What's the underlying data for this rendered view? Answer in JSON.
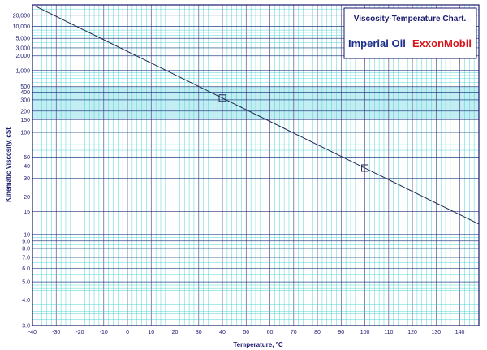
{
  "chart_data": {
    "type": "line",
    "title": "Viscosity-Temperature Chart.",
    "brands": [
      "Imperial Oil",
      "ExxonMobil"
    ],
    "xlabel": "Temperature, °C",
    "ylabel": "Kinematic Viscosity, cSt",
    "xlim": [
      -40,
      148
    ],
    "ylim": [
      3.0,
      40000
    ],
    "x_scale": "linear",
    "y_scale": "ASTM D341 (log-log)",
    "grid": true,
    "x_ticks": [
      -40,
      -30,
      -20,
      -10,
      0,
      10,
      20,
      30,
      40,
      50,
      60,
      70,
      80,
      90,
      100,
      110,
      120,
      130,
      140
    ],
    "x_tick_labels": [
      "-40",
      "-30",
      "-20",
      "-10",
      "0",
      "10",
      "20",
      "30",
      "40",
      "50",
      "60",
      "70",
      "80",
      "90",
      "100",
      "110",
      "120",
      "130",
      "140"
    ],
    "y_ticks": [
      3.0,
      4.0,
      5.0,
      6.0,
      7.0,
      8.0,
      9.0,
      10,
      15,
      20,
      30,
      40,
      50,
      100,
      150,
      200,
      300,
      400,
      500,
      1000,
      2000,
      3000,
      5000,
      10000,
      20000
    ],
    "y_tick_labels": [
      "3.0",
      "4.0",
      "5.0",
      "6.0",
      "7.0",
      "8.0",
      "9.0",
      "10",
      "15",
      "20",
      "30",
      "40",
      "50",
      "100",
      "150",
      "200",
      "300",
      "400",
      "500",
      "1,000",
      "2,000",
      "3,000",
      "5,000",
      "10,000",
      "20,000"
    ],
    "series": [
      {
        "points": [
          {
            "x": 40,
            "y": 320
          },
          {
            "x": 100,
            "y": 38
          }
        ],
        "markers": true,
        "extrapolated": true
      }
    ],
    "colors": {
      "grid": "#2ec9cc",
      "band": "#8fe0ea",
      "axis": "#1a1a6e",
      "line": "#1e2a55"
    }
  }
}
